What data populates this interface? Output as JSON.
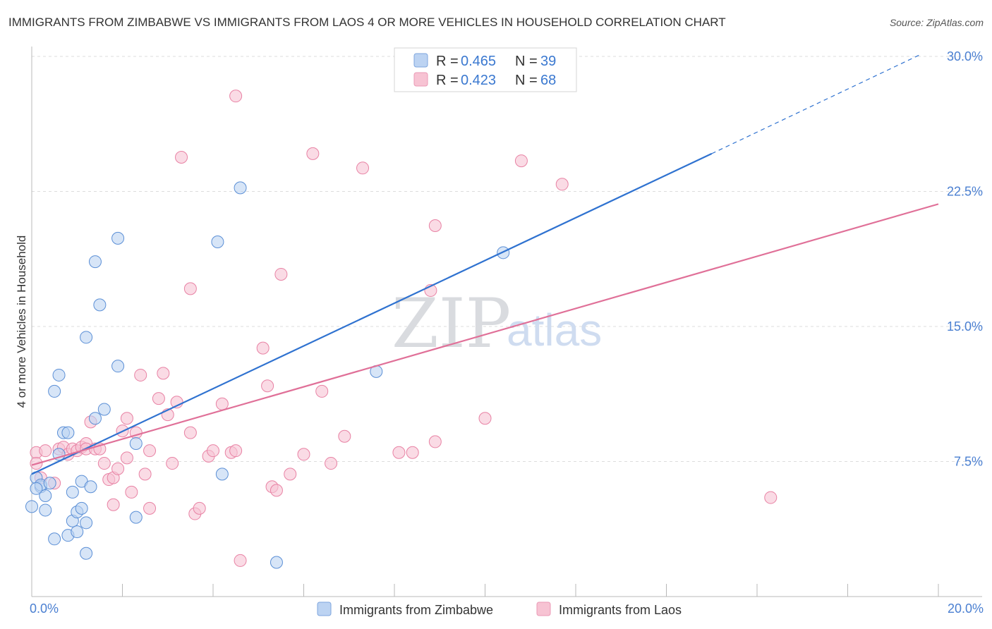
{
  "title": "IMMIGRANTS FROM ZIMBABWE VS IMMIGRANTS FROM LAOS 4 OR MORE VEHICLES IN HOUSEHOLD CORRELATION CHART",
  "source": "Source: ZipAtlas.com",
  "watermark": {
    "zip": "ZIP",
    "atlas": "atlas"
  },
  "colors": {
    "zimbabwe_fill": "#bcd3f2",
    "zimbabwe_stroke": "#5b8fd6",
    "zimbabwe_line": "#2f72d0",
    "laos_fill": "#f7c3d3",
    "laos_stroke": "#e882a4",
    "laos_line": "#e07098",
    "axis_label": "#4a7fd1",
    "grid": "#dddddd"
  },
  "legend": {
    "rows": [
      {
        "r_label": "R =",
        "r_value": "0.465",
        "n_label": "N =",
        "n_value": "39"
      },
      {
        "r_label": "R =",
        "r_value": "0.423",
        "n_label": "N =",
        "n_value": "68"
      }
    ]
  },
  "bottom_legend": [
    "Immigrants from Zimbabwe",
    "Immigrants from Laos"
  ],
  "chart_data": {
    "type": "scatter",
    "title": "IMMIGRANTS FROM ZIMBABWE VS IMMIGRANTS FROM LAOS 4 OR MORE VEHICLES IN HOUSEHOLD CORRELATION CHART",
    "xlabel": "",
    "ylabel": "4 or more Vehicles in Household",
    "xlim": [
      0,
      20
    ],
    "ylim": [
      0,
      30
    ],
    "x_tick_labels": [
      "0.0%",
      "20.0%"
    ],
    "y_ticks": [
      7.5,
      15.0,
      22.5,
      30.0
    ],
    "y_tick_labels": [
      "7.5%",
      "15.0%",
      "22.5%",
      "30.0%"
    ],
    "grid": true,
    "legend_position": "top-center",
    "series": [
      {
        "name": "Immigrants from Zimbabwe",
        "R": 0.465,
        "N": 39,
        "trend": {
          "x0": 0,
          "y0": 6.8,
          "x1": 15.0,
          "y1": 24.6,
          "dash_to_x": 19.6,
          "dash_to_y": 30.1
        },
        "points": [
          [
            0.1,
            6.6
          ],
          [
            0.2,
            6.1
          ],
          [
            0.2,
            6.2
          ],
          [
            0.3,
            4.8
          ],
          [
            0.3,
            5.6
          ],
          [
            0.4,
            6.3
          ],
          [
            0.5,
            11.4
          ],
          [
            0.5,
            3.2
          ],
          [
            0.6,
            7.9
          ],
          [
            0.6,
            12.3
          ],
          [
            0.7,
            9.1
          ],
          [
            0.8,
            3.4
          ],
          [
            0.8,
            9.1
          ],
          [
            0.9,
            4.2
          ],
          [
            0.9,
            5.8
          ],
          [
            1.0,
            3.6
          ],
          [
            1.0,
            4.7
          ],
          [
            1.1,
            6.4
          ],
          [
            1.1,
            4.9
          ],
          [
            1.2,
            4.1
          ],
          [
            1.2,
            2.4
          ],
          [
            1.2,
            14.4
          ],
          [
            1.3,
            6.1
          ],
          [
            1.4,
            9.9
          ],
          [
            1.4,
            18.6
          ],
          [
            1.5,
            16.2
          ],
          [
            1.6,
            10.4
          ],
          [
            1.9,
            12.8
          ],
          [
            1.9,
            19.9
          ],
          [
            2.3,
            8.5
          ],
          [
            2.3,
            4.4
          ],
          [
            4.1,
            19.7
          ],
          [
            4.2,
            6.8
          ],
          [
            4.6,
            22.7
          ],
          [
            5.4,
            1.9
          ],
          [
            7.6,
            12.5
          ],
          [
            10.4,
            19.1
          ],
          [
            0.0,
            5.0
          ],
          [
            0.1,
            6.0
          ]
        ]
      },
      {
        "name": "Immigrants from Laos",
        "R": 0.423,
        "N": 68,
        "trend": {
          "x0": 0,
          "y0": 7.3,
          "x1": 20.0,
          "y1": 21.8
        },
        "points": [
          [
            0.1,
            8.0
          ],
          [
            0.1,
            7.4
          ],
          [
            0.2,
            6.6
          ],
          [
            0.3,
            8.1
          ],
          [
            0.5,
            6.3
          ],
          [
            0.6,
            8.2
          ],
          [
            0.7,
            8.3
          ],
          [
            0.8,
            7.9
          ],
          [
            0.9,
            8.2
          ],
          [
            1.0,
            8.1
          ],
          [
            1.1,
            8.3
          ],
          [
            1.2,
            8.5
          ],
          [
            1.2,
            8.2
          ],
          [
            1.3,
            9.7
          ],
          [
            1.4,
            8.2
          ],
          [
            1.5,
            8.2
          ],
          [
            1.6,
            7.4
          ],
          [
            1.7,
            6.5
          ],
          [
            1.8,
            6.6
          ],
          [
            1.8,
            5.1
          ],
          [
            1.9,
            7.1
          ],
          [
            2.0,
            9.2
          ],
          [
            2.1,
            7.7
          ],
          [
            2.1,
            9.9
          ],
          [
            2.2,
            5.8
          ],
          [
            2.3,
            9.1
          ],
          [
            2.4,
            12.3
          ],
          [
            2.5,
            6.8
          ],
          [
            2.6,
            8.1
          ],
          [
            2.6,
            4.9
          ],
          [
            2.8,
            11.0
          ],
          [
            2.9,
            12.4
          ],
          [
            3.0,
            10.1
          ],
          [
            3.1,
            7.4
          ],
          [
            3.2,
            10.8
          ],
          [
            3.3,
            24.4
          ],
          [
            3.5,
            17.1
          ],
          [
            3.5,
            9.1
          ],
          [
            3.6,
            4.6
          ],
          [
            3.7,
            4.9
          ],
          [
            3.9,
            7.8
          ],
          [
            4.0,
            8.1
          ],
          [
            4.2,
            10.7
          ],
          [
            4.4,
            8.0
          ],
          [
            4.5,
            8.1
          ],
          [
            4.5,
            27.8
          ],
          [
            4.6,
            2.0
          ],
          [
            5.1,
            13.8
          ],
          [
            5.2,
            11.7
          ],
          [
            5.3,
            6.1
          ],
          [
            5.4,
            5.9
          ],
          [
            5.5,
            17.9
          ],
          [
            5.7,
            6.8
          ],
          [
            6.0,
            7.9
          ],
          [
            6.2,
            24.6
          ],
          [
            6.4,
            11.4
          ],
          [
            6.6,
            7.4
          ],
          [
            6.9,
            8.9
          ],
          [
            7.3,
            23.8
          ],
          [
            8.1,
            8.0
          ],
          [
            8.4,
            8.0
          ],
          [
            8.8,
            17.0
          ],
          [
            8.9,
            20.6
          ],
          [
            8.9,
            8.6
          ],
          [
            10.0,
            9.9
          ],
          [
            10.8,
            24.2
          ],
          [
            11.7,
            22.9
          ],
          [
            16.3,
            5.5
          ]
        ]
      }
    ]
  }
}
